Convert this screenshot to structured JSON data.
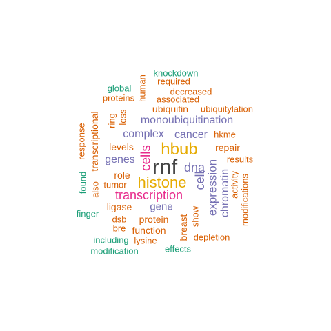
{
  "colors": {
    "teal": "#1b9e77",
    "orange": "#d95f02",
    "purple": "#7570b3",
    "magenta": "#e7298a",
    "gold": "#e6ab02",
    "dark": "#444444"
  },
  "words": [
    {
      "text": "rnf",
      "color": "dark"
    },
    {
      "text": "hbub",
      "color": "gold"
    },
    {
      "text": "histone",
      "color": "gold"
    },
    {
      "text": "transcription",
      "color": "magenta"
    },
    {
      "text": "cells",
      "color": "magenta"
    },
    {
      "text": "dna",
      "color": "purple"
    },
    {
      "text": "cell",
      "color": "purple"
    },
    {
      "text": "expression",
      "color": "purple"
    },
    {
      "text": "chromatin",
      "color": "purple"
    },
    {
      "text": "monoubiquitination",
      "color": "purple"
    },
    {
      "text": "complex",
      "color": "purple"
    },
    {
      "text": "cancer",
      "color": "purple"
    },
    {
      "text": "genes",
      "color": "purple"
    },
    {
      "text": "gene",
      "color": "purple"
    },
    {
      "text": "ubiquitin",
      "color": "orange"
    },
    {
      "text": "ubiquitylation",
      "color": "orange"
    },
    {
      "text": "hkme",
      "color": "orange"
    },
    {
      "text": "repair",
      "color": "orange"
    },
    {
      "text": "results",
      "color": "orange"
    },
    {
      "text": "levels",
      "color": "orange"
    },
    {
      "text": "role",
      "color": "orange"
    },
    {
      "text": "tumor",
      "color": "orange"
    },
    {
      "text": "ligase",
      "color": "orange"
    },
    {
      "text": "protein",
      "color": "orange"
    },
    {
      "text": "dsb",
      "color": "orange"
    },
    {
      "text": "bre",
      "color": "orange"
    },
    {
      "text": "function",
      "color": "orange"
    },
    {
      "text": "lysine",
      "color": "orange"
    },
    {
      "text": "depletion",
      "color": "orange"
    },
    {
      "text": "decreased",
      "color": "orange"
    },
    {
      "text": "associated",
      "color": "orange"
    },
    {
      "text": "required",
      "color": "orange"
    },
    {
      "text": "proteins",
      "color": "orange"
    },
    {
      "text": "ring",
      "color": "orange"
    },
    {
      "text": "loss",
      "color": "orange"
    },
    {
      "text": "human",
      "color": "orange"
    },
    {
      "text": "transcriptional",
      "color": "orange"
    },
    {
      "text": "response",
      "color": "orange"
    },
    {
      "text": "also",
      "color": "orange"
    },
    {
      "text": "activity",
      "color": "orange"
    },
    {
      "text": "modifications",
      "color": "orange"
    },
    {
      "text": "breast",
      "color": "orange"
    },
    {
      "text": "show",
      "color": "orange"
    },
    {
      "text": "knockdown",
      "color": "teal"
    },
    {
      "text": "global",
      "color": "teal"
    },
    {
      "text": "found",
      "color": "teal"
    },
    {
      "text": "finger",
      "color": "teal"
    },
    {
      "text": "including",
      "color": "teal"
    },
    {
      "text": "modification",
      "color": "teal"
    },
    {
      "text": "effects",
      "color": "teal"
    }
  ]
}
